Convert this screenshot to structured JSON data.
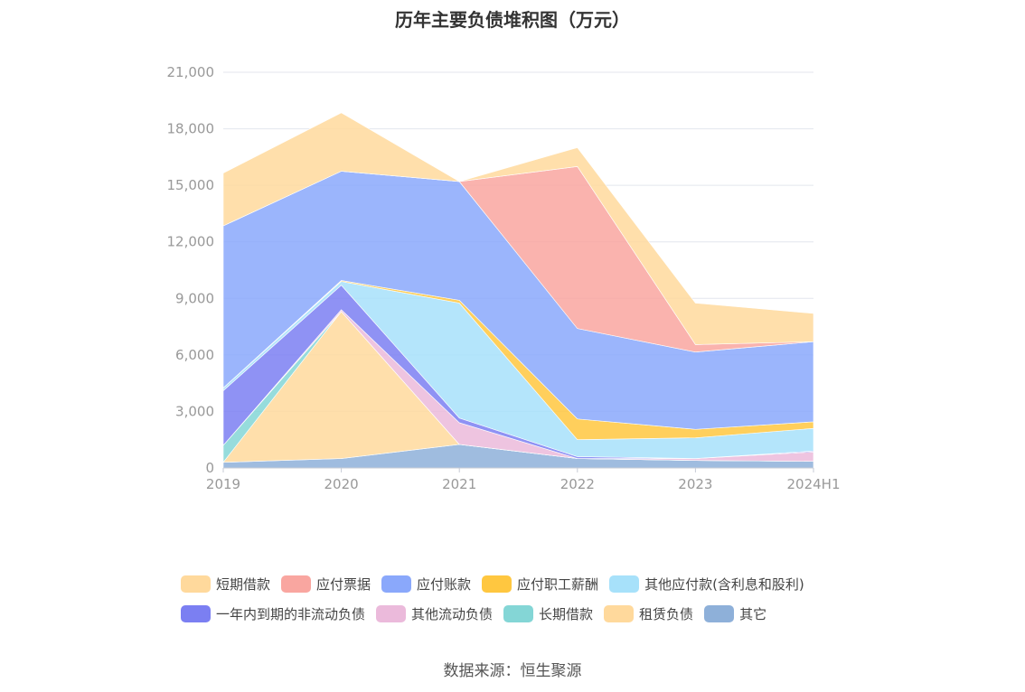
{
  "title": "历年主要负债堆积图（万元）",
  "source": "数据来源：恒生聚源",
  "chart_data": {
    "type": "area",
    "stacked": true,
    "categories": [
      "2019",
      "2020",
      "2021",
      "2022",
      "2023",
      "2024H1"
    ],
    "ylim": [
      0,
      21000
    ],
    "yticks": [
      0,
      3000,
      6000,
      9000,
      12000,
      15000,
      18000,
      21000
    ],
    "ytick_labels": [
      "0",
      "3,000",
      "6,000",
      "9,000",
      "12,000",
      "15,000",
      "18,000",
      "21,000"
    ],
    "grid": true,
    "legend_position": "bottom",
    "series": [
      {
        "name": "其它",
        "color": "#8eb0d9",
        "values": [
          300,
          500,
          1250,
          500,
          400,
          350
        ]
      },
      {
        "name": "租赁负债",
        "color": "#ffd99c",
        "values": [
          0,
          7800,
          0,
          0,
          0,
          0
        ]
      },
      {
        "name": "长期借款",
        "color": "#84d6d6",
        "values": [
          900,
          0,
          0,
          0,
          0,
          0
        ]
      },
      {
        "name": "其他流动负债",
        "color": "#ebbadb",
        "values": [
          0,
          100,
          1150,
          0,
          100,
          500
        ]
      },
      {
        "name": "一年内到期的非流动负债",
        "color": "#7b7ff2",
        "values": [
          2900,
          1300,
          250,
          100,
          0,
          50
        ]
      },
      {
        "name": "其他应付款(含利息和股利)",
        "color": "#a7e1fa",
        "values": [
          150,
          200,
          6100,
          900,
          1100,
          1200
        ]
      },
      {
        "name": "应付职工薪酬",
        "color": "#ffc740",
        "values": [
          0,
          50,
          150,
          1100,
          450,
          350
        ]
      },
      {
        "name": "应付账款",
        "color": "#8aa8fb",
        "values": [
          8600,
          5800,
          6300,
          4800,
          4100,
          4250
        ]
      },
      {
        "name": "应付票据",
        "color": "#f9a6a0",
        "values": [
          0,
          0,
          0,
          8600,
          400,
          0
        ]
      },
      {
        "name": "短期借款",
        "color": "#ffd99c",
        "values": [
          2800,
          3100,
          0,
          1000,
          2200,
          1500
        ]
      }
    ],
    "legend_order": [
      "短期借款",
      "应付票据",
      "应付账款",
      "应付职工薪酬",
      "其他应付款(含利息和股利)",
      "一年内到期的非流动负债",
      "其他流动负债",
      "长期借款",
      "租赁负债",
      "其它"
    ]
  }
}
